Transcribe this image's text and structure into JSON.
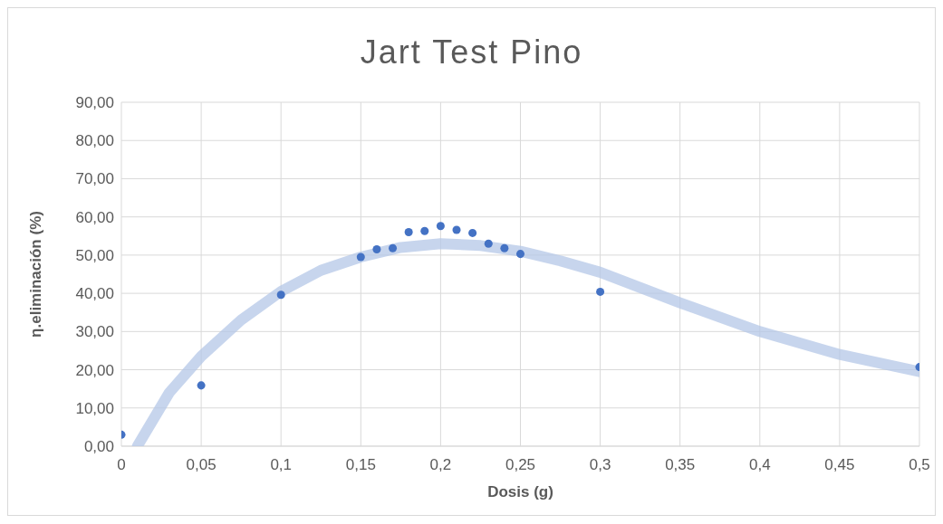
{
  "chart_data": {
    "type": "scatter",
    "title": "Jart Test Pino",
    "xlabel": "Dosis (g)",
    "ylabel": "η.eliminación (%)",
    "series": [
      {
        "color": "#4472c4",
        "marker": "circle",
        "x": [
          0,
          0.05,
          0.1,
          0.15,
          0.16,
          0.17,
          0.18,
          0.19,
          0.2,
          0.21,
          0.22,
          0.23,
          0.24,
          0.25,
          0.3,
          0.5
        ],
        "values": [
          3,
          15.9,
          39.6,
          49.5,
          51.5,
          51.8,
          56,
          56.3,
          57.6,
          56.6,
          55.8,
          53,
          51.8,
          50.3,
          40.4,
          20.7
        ]
      },
      {
        "type": "line",
        "marker": "none",
        "color": "#b4c7e7",
        "x": [
          0.01,
          0.03,
          0.05,
          0.075,
          0.1,
          0.125,
          0.15,
          0.175,
          0.2,
          0.225,
          0.25,
          0.275,
          0.3,
          0.35,
          0.4,
          0.45,
          0.5
        ],
        "values": [
          0,
          14,
          23.5,
          33,
          40.5,
          46,
          49.5,
          52,
          53,
          52.5,
          51,
          48.5,
          45.5,
          37.5,
          30,
          24,
          19.5
        ]
      }
    ],
    "xlim": [
      0,
      0.5
    ],
    "xticks": [
      0,
      {
        "value": 0.05,
        "label": "0,05"
      },
      {
        "value": 0.1,
        "label": "0,1"
      },
      {
        "value": 0.15,
        "label": "0,15"
      },
      {
        "value": 0.2,
        "label": "0,2"
      },
      {
        "value": 0.25,
        "label": "0,25"
      },
      {
        "value": 0.3,
        "label": "0,3"
      },
      {
        "value": 0.35,
        "label": "0,35"
      },
      {
        "value": 0.4,
        "label": "0,4"
      },
      {
        "value": 0.45,
        "label": "0,45"
      },
      {
        "value": 0.5,
        "label": "0,5"
      }
    ],
    "ylim": [
      0,
      90
    ],
    "yticks": [
      {
        "value": 0,
        "label": "0,00"
      },
      {
        "value": 10,
        "label": "10,00"
      },
      {
        "value": 20,
        "label": "20,00"
      },
      {
        "value": 30,
        "label": "30,00"
      },
      {
        "value": 40,
        "label": "40,00"
      },
      {
        "value": 50,
        "label": "50,00"
      },
      {
        "value": 60,
        "label": "60,00"
      },
      {
        "value": 70,
        "label": "70,00"
      },
      {
        "value": 80,
        "label": "80,00"
      },
      {
        "value": 90,
        "label": "90,00"
      }
    ],
    "grid": true
  }
}
